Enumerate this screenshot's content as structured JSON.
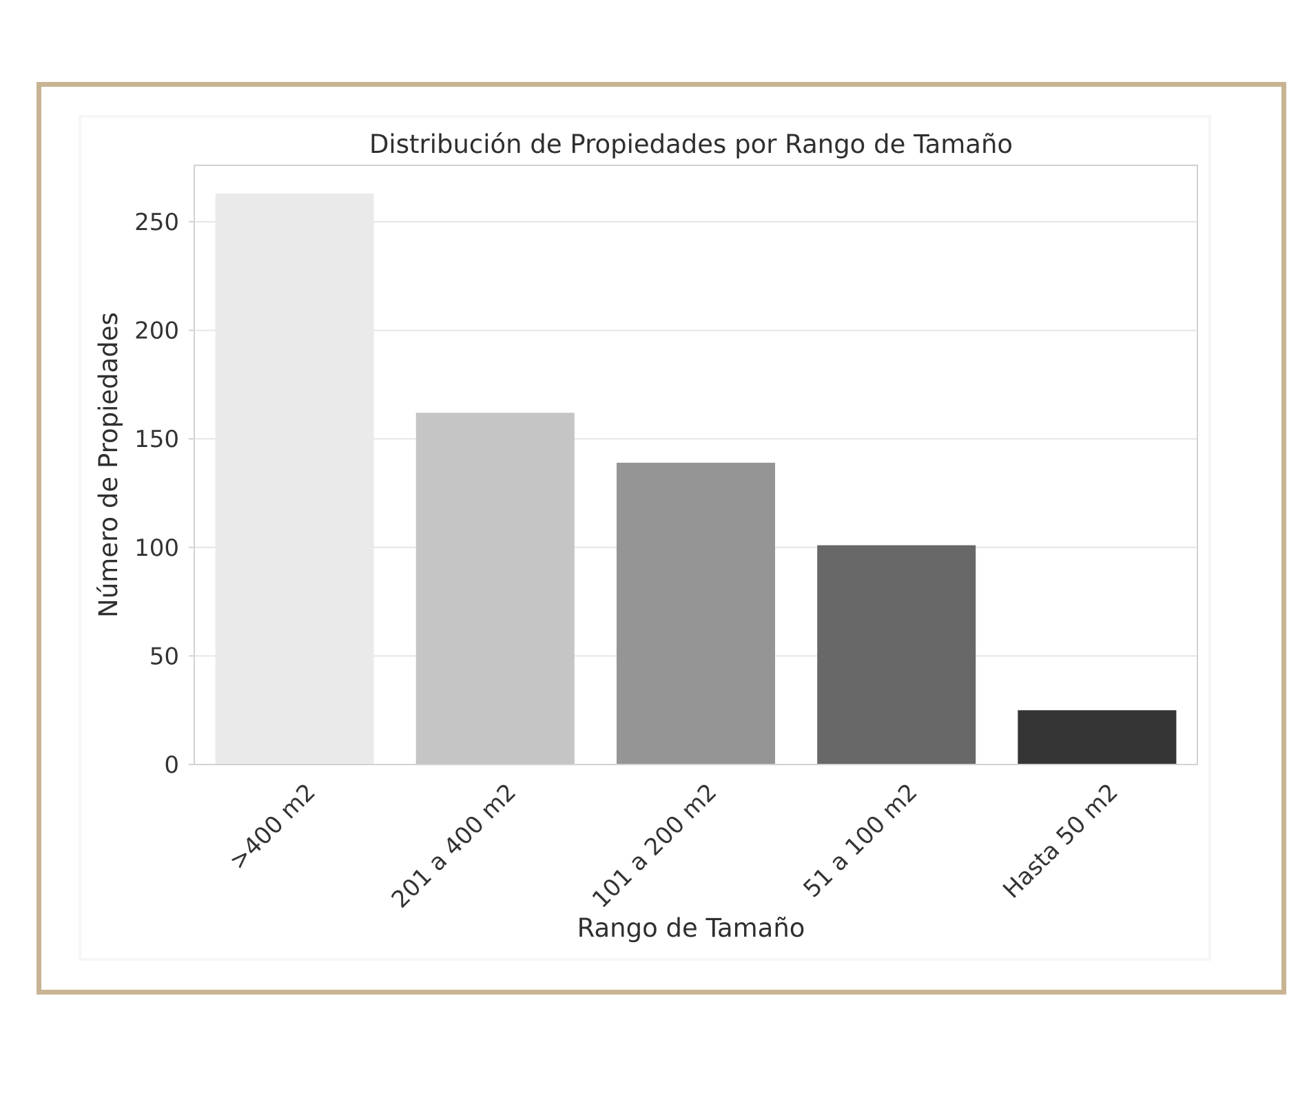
{
  "chart_data": {
    "type": "bar",
    "title": "Distribución de Propiedades por Rango de Tamaño",
    "xlabel": "Rango de Tamaño",
    "ylabel": "Número de Propiedades",
    "categories": [
      ">400 m2",
      "201 a 400 m2",
      "101 a 200 m2",
      "51 a 100 m2",
      "Hasta 50 m2"
    ],
    "values": [
      263,
      162,
      139,
      101,
      25
    ],
    "ylim": [
      0,
      276
    ],
    "yticks": [
      0,
      50,
      100,
      150,
      200,
      250
    ],
    "grid": true,
    "bar_colors": [
      "#eaeaea",
      "#c5c5c5",
      "#959595",
      "#686868",
      "#353535"
    ],
    "grid_color": "#e6e6e6",
    "frame_color": "#c8b492"
  }
}
